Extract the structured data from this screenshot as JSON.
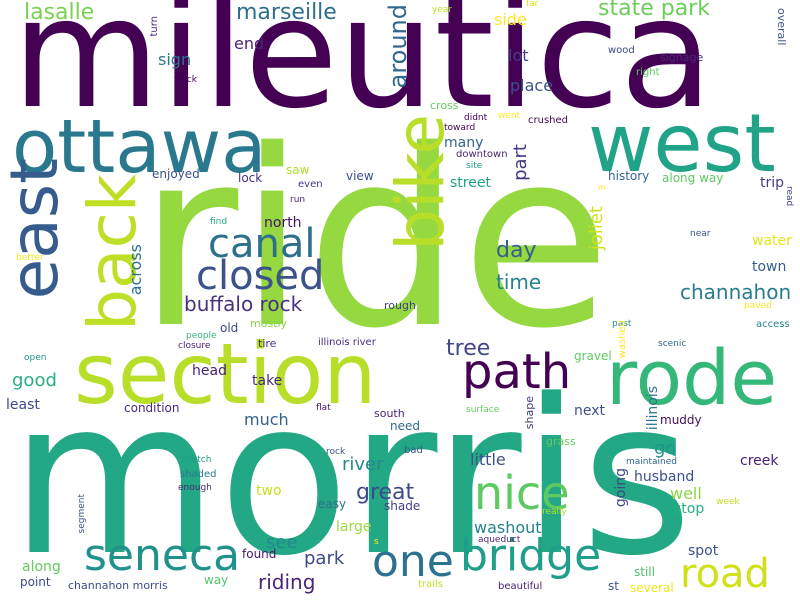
{
  "words": [
    {
      "text": "mileutica",
      "color": "#440154"
    },
    {
      "text": "ride",
      "color": "#95d840"
    },
    {
      "text": "morris",
      "color": "#22a884"
    },
    {
      "text": "section",
      "color": "#b8de29"
    },
    {
      "text": "west",
      "color": "#20a386"
    },
    {
      "text": "ottawa",
      "color": "#2a788e"
    },
    {
      "text": "east",
      "color": "#365c8d"
    },
    {
      "text": "bike",
      "color": "#b8de29"
    },
    {
      "text": "back",
      "color": "#bddf26"
    },
    {
      "text": "rode",
      "color": "#35b779"
    },
    {
      "text": "path",
      "color": "#440154"
    },
    {
      "text": "canal",
      "color": "#2d708e"
    },
    {
      "text": "closed",
      "color": "#3b528b"
    },
    {
      "text": "road",
      "color": "#d0e11c"
    },
    {
      "text": "bridge",
      "color": "#1f9e89"
    },
    {
      "text": "seneca",
      "color": "#21918c"
    },
    {
      "text": "nice",
      "color": "#5ec962"
    },
    {
      "text": "one",
      "color": "#2c728e"
    },
    {
      "text": "state park",
      "color": "#6ccd5a"
    },
    {
      "text": "marseille",
      "color": "#2e6e8e"
    },
    {
      "text": "lasalle",
      "color": "#7ad151"
    },
    {
      "text": "around",
      "color": "#31688e"
    },
    {
      "text": "buffalo rock",
      "color": "#46327e"
    },
    {
      "text": "channahon",
      "color": "#287c8e"
    },
    {
      "text": "great",
      "color": "#3e4989"
    },
    {
      "text": "tree",
      "color": "#404688"
    },
    {
      "text": "day",
      "color": "#355f8d"
    },
    {
      "text": "time",
      "color": "#25838e"
    },
    {
      "text": "joliet",
      "color": "#d2e21b"
    },
    {
      "text": "part",
      "color": "#453882"
    },
    {
      "text": "river",
      "color": "#24868e"
    },
    {
      "text": "riding",
      "color": "#482677"
    },
    {
      "text": "see",
      "color": "#228b8d"
    },
    {
      "text": "park",
      "color": "#3e4a89"
    },
    {
      "text": "good",
      "color": "#28ae80"
    },
    {
      "text": "across",
      "color": "#2b748e"
    },
    {
      "text": "sign",
      "color": "#2a768e"
    },
    {
      "text": "end",
      "color": "#482475"
    },
    {
      "text": "lot",
      "color": "#433e85"
    },
    {
      "text": "place",
      "color": "#3a548c"
    },
    {
      "text": "side",
      "color": "#fde725"
    },
    {
      "text": "north",
      "color": "#471365"
    },
    {
      "text": "town",
      "color": "#355e8d"
    },
    {
      "text": "water",
      "color": "#e5e419"
    },
    {
      "text": "trip",
      "color": "#443a83"
    },
    {
      "text": "many",
      "color": "#33638d"
    },
    {
      "text": "street",
      "color": "#1fa188"
    },
    {
      "text": "along",
      "color": "#65cb5e"
    },
    {
      "text": "go",
      "color": "#1f948c"
    },
    {
      "text": "well",
      "color": "#8ed645"
    },
    {
      "text": "stop",
      "color": "#29af7f"
    },
    {
      "text": "little",
      "color": "#3a538b"
    },
    {
      "text": "washout",
      "color": "#26818e"
    },
    {
      "text": "much",
      "color": "#34618d"
    },
    {
      "text": "take",
      "color": "#482979"
    },
    {
      "text": "next",
      "color": "#3c4f8a"
    },
    {
      "text": "spot",
      "color": "#39558c"
    },
    {
      "text": "riding",
      "color": "#482677"
    },
    {
      "text": "least",
      "color": "#3f4889"
    },
    {
      "text": "head",
      "color": "#481f70"
    },
    {
      "text": "condition",
      "color": "#472a7a"
    },
    {
      "text": "history",
      "color": "#32658e"
    },
    {
      "text": "along way",
      "color": "#5cc863"
    },
    {
      "text": "enjoyed",
      "color": "#3c508b"
    },
    {
      "text": "lock",
      "color": "#46307e"
    },
    {
      "text": "saw",
      "color": "#addc30"
    },
    {
      "text": "view",
      "color": "#3e4c8a"
    },
    {
      "text": "even",
      "color": "#453781"
    },
    {
      "text": "illinois",
      "color": "#2c718e"
    },
    {
      "text": "husband",
      "color": "#3b518b"
    },
    {
      "text": "creek",
      "color": "#482173"
    },
    {
      "text": "muddy",
      "color": "#460b5e"
    },
    {
      "text": "going",
      "color": "#3f4788"
    },
    {
      "text": "two",
      "color": "#c8e020"
    },
    {
      "text": "large",
      "color": "#9bd93c"
    },
    {
      "text": "shade",
      "color": "#424086"
    },
    {
      "text": "easy",
      "color": "#2e6f8e"
    },
    {
      "text": "found",
      "color": "#48186a"
    },
    {
      "text": "way",
      "color": "#52c569"
    },
    {
      "text": "still",
      "color": "#4ac16d"
    },
    {
      "text": "st",
      "color": "#3b528b"
    },
    {
      "text": "several",
      "color": "#f1e51d"
    },
    {
      "text": "point",
      "color": "#3f4788"
    },
    {
      "text": "channahon morris",
      "color": "#3e4a89"
    },
    {
      "text": "trails",
      "color": "#c2df23"
    },
    {
      "text": "beautiful",
      "color": "#482173"
    },
    {
      "text": "aqueduct",
      "color": "#482878"
    },
    {
      "text": "need",
      "color": "#31688e"
    },
    {
      "text": "bad",
      "color": "#38588c"
    },
    {
      "text": "south",
      "color": "#482475"
    },
    {
      "text": "grass",
      "color": "#63cb5f"
    },
    {
      "text": "shape",
      "color": "#453882"
    },
    {
      "text": "surface",
      "color": "#63cb5f"
    },
    {
      "text": "flat",
      "color": "#481769"
    },
    {
      "text": "rough",
      "color": "#414487"
    },
    {
      "text": "old",
      "color": "#3f4889"
    },
    {
      "text": "mostly",
      "color": "#89d548"
    },
    {
      "text": "tire",
      "color": "#46337e"
    },
    {
      "text": "illinois river",
      "color": "#472c7a"
    },
    {
      "text": "closure",
      "color": "#481b6d"
    },
    {
      "text": "people",
      "color": "#35b779"
    },
    {
      "text": "open",
      "color": "#21918c"
    },
    {
      "text": "better",
      "color": "#f6e620"
    },
    {
      "text": "find",
      "color": "#27ad81"
    },
    {
      "text": "run",
      "color": "#482878"
    },
    {
      "text": "track",
      "color": "#440154"
    },
    {
      "text": "turn",
      "color": "#482878"
    },
    {
      "text": "year",
      "color": "#bddf26"
    },
    {
      "text": "far",
      "color": "#dde318"
    },
    {
      "text": "wood",
      "color": "#3e4989"
    },
    {
      "text": "overall",
      "color": "#3b528b"
    },
    {
      "text": "signage",
      "color": "#482878"
    },
    {
      "text": "right",
      "color": "#5ec962"
    },
    {
      "text": "cross",
      "color": "#63cb5f"
    },
    {
      "text": "didnt",
      "color": "#440154"
    },
    {
      "text": "went",
      "color": "#fde725"
    },
    {
      "text": "crushed",
      "color": "#440154"
    },
    {
      "text": "toward",
      "color": "#440154"
    },
    {
      "text": "downtown",
      "color": "#482878"
    },
    {
      "text": "site",
      "color": "#1f9e89"
    },
    {
      "text": "m",
      "color": "#fde725"
    },
    {
      "text": "near",
      "color": "#3b528b"
    },
    {
      "text": "read",
      "color": "#3e4989"
    },
    {
      "text": "paved",
      "color": "#fde725"
    },
    {
      "text": "access",
      "color": "#26828e"
    },
    {
      "text": "past",
      "color": "#26828e"
    },
    {
      "text": "washed",
      "color": "#fde725"
    },
    {
      "text": "scenic",
      "color": "#31688e"
    },
    {
      "text": "gravel",
      "color": "#5ec962"
    },
    {
      "text": "maintained",
      "color": "#31688e"
    },
    {
      "text": "week",
      "color": "#c2df23"
    },
    {
      "text": "really",
      "color": "#b5de2b"
    },
    {
      "text": "enough",
      "color": "#482878"
    },
    {
      "text": "shaded",
      "color": "#2a788e"
    },
    {
      "text": "stretch",
      "color": "#1f9e89"
    },
    {
      "text": "rock",
      "color": "#3b528b"
    },
    {
      "text": "segment",
      "color": "#3b528b"
    },
    {
      "text": "s",
      "color": "#fde725"
    }
  ]
}
